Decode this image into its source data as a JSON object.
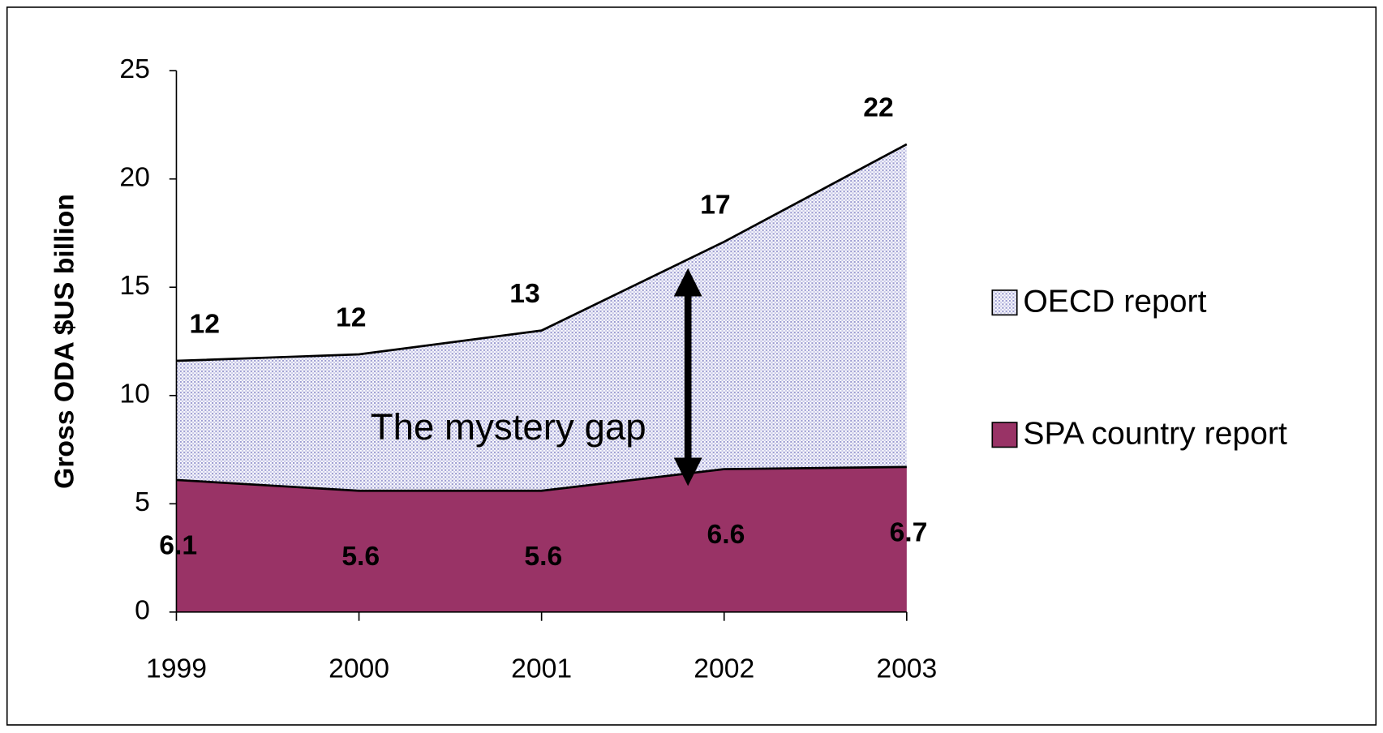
{
  "chart_data": {
    "type": "area",
    "y_label": "Gross ODA $US billion",
    "categories": [
      "1999",
      "2000",
      "2001",
      "2002",
      "2003"
    ],
    "series": [
      {
        "name": "OECD report",
        "color": "#e4e4f4",
        "values": [
          11.6,
          11.9,
          13.0,
          17.1,
          21.6
        ],
        "value_labels": [
          "12",
          "12",
          "13",
          "17",
          "22"
        ]
      },
      {
        "name": "SPA country report",
        "color": "#993366",
        "values": [
          6.1,
          5.6,
          5.6,
          6.6,
          6.7
        ]
      }
    ],
    "annotation": "The mystery gap",
    "ylim": [
      0,
      25
    ],
    "yticks": [
      0,
      5,
      10,
      15,
      20,
      25
    ],
    "legend": "right"
  }
}
